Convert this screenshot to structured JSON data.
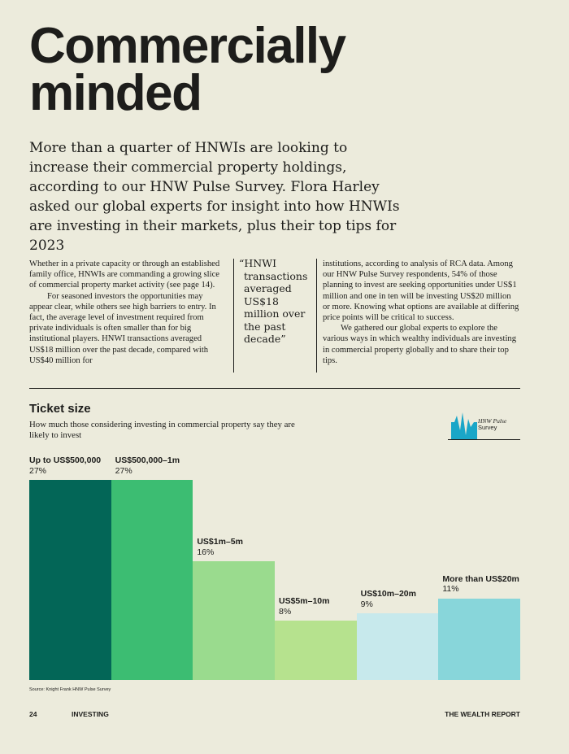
{
  "page": {
    "title_line1": "Commercially",
    "title_line2": "minded",
    "standfirst": "More than a quarter of HNWIs are looking to increase their commercial property holdings, according to our HNW Pulse Survey. Flora Harley asked our global experts for insight into how HNWIs are investing in their markets, plus their top tips for 2023"
  },
  "body": {
    "col1_p1": "Whether in a private capacity or through an established family office, HNWIs are commanding a growing slice of commercial property market activity (see page 14).",
    "col1_p2": "For seasoned investors the opportunities may appear clear, while others see high barriers to entry. In fact, the average level of investment required from private individuals is often smaller than for big institutional players. HNWI transactions averaged US$18 million over the past decade, compared with US$40 million for",
    "quote": "“HNWI transactions averaged US$18 million over the past decade”",
    "col3_p1": "institutions, according to analysis of RCA data. Among our HNW Pulse Survey respondents, 54% of those planning to invest are seeking opportunities under US$1 million and one in ten will be investing US$20 million or more. Knowing what options are available at differing price points will be critical to success.",
    "col3_p2": "We gathered our global experts to explore the various ways in which wealthy individuals are investing in commercial property globally and to share their top tips."
  },
  "logo": {
    "line1": "HNW Pulse",
    "line2": "Survey",
    "accent_color": "#1aa6c8"
  },
  "chart_data": {
    "type": "bar",
    "title": "Ticket size",
    "subtitle": "How much those considering investing in commercial property say they are likely to invest",
    "categories": [
      "Up to US$500,000",
      "US$500,000–1m",
      "US$1m–5m",
      "US$5m–10m",
      "US$10m–20m",
      "More than US$20m"
    ],
    "values": [
      27,
      27,
      16,
      8,
      9,
      11
    ],
    "value_labels": [
      "27%",
      "27%",
      "16%",
      "8%",
      "9%",
      "11%"
    ],
    "colors": [
      "#036657",
      "#3cbd72",
      "#9adb8e",
      "#b6e28e",
      "#c7e9ec",
      "#88d6da"
    ],
    "ylim": [
      0,
      27
    ],
    "xlabel": "",
    "ylabel": "",
    "grid": false,
    "source": "Source: Knight Frank HNW Pulse Survey"
  },
  "footer": {
    "page_number": "24",
    "section": "INVESTING",
    "publication": "THE WEALTH REPORT"
  }
}
